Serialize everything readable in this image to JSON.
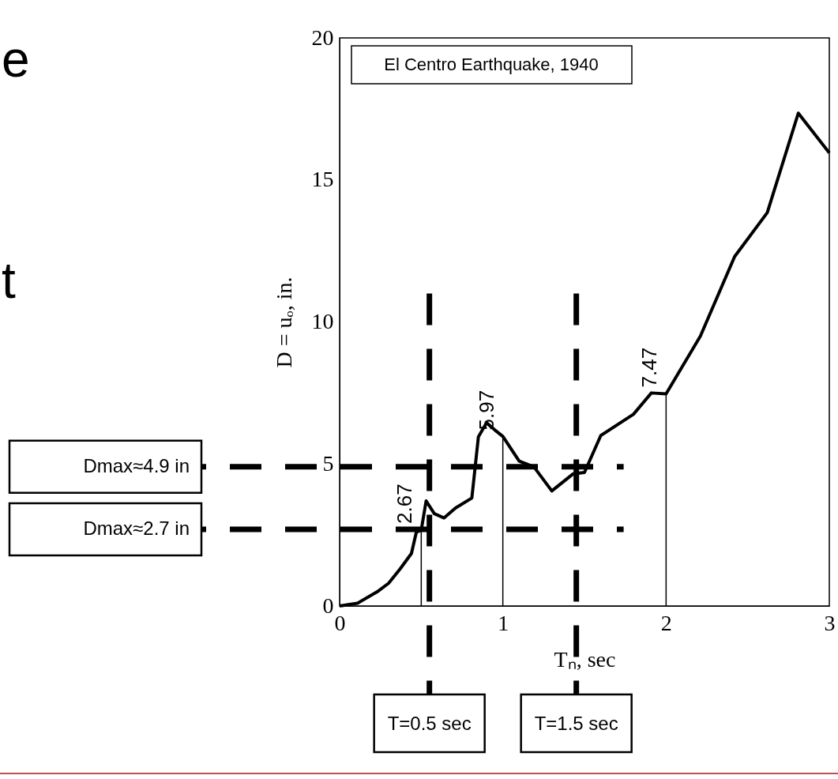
{
  "chart_data": {
    "type": "line",
    "xlabel": "Tₙ, sec",
    "ylabel": "D = uₒ, in.",
    "xlim": [
      0,
      3
    ],
    "xticks": [
      0,
      1,
      2,
      3
    ],
    "ylim": [
      0,
      20
    ],
    "yticks": [
      0,
      5,
      10,
      15,
      20
    ],
    "grid": false,
    "marker": "none",
    "line_style": "solid",
    "x": [
      0,
      0.11,
      0.23,
      0.3,
      0.37,
      0.44,
      0.47,
      0.5,
      0.53,
      0.58,
      0.64,
      0.71,
      0.81,
      0.85,
      0.9,
      0.95,
      1,
      1.1,
      1.19,
      1.3,
      1.43,
      1.5,
      1.6,
      1.8,
      1.91,
      2,
      2.21,
      2.42,
      2.62,
      2.81,
      3
    ],
    "series": [
      {
        "color": "#000000",
        "values": [
          0,
          0.1,
          0.5,
          0.8,
          1.3,
          1.85,
          2.6,
          2.67,
          3.7,
          3.25,
          3.1,
          3.45,
          3.8,
          5.95,
          6.45,
          6.2,
          5.97,
          5.1,
          4.9,
          4.05,
          4.65,
          4.7,
          6.0,
          6.75,
          7.5,
          7.47,
          9.5,
          12.3,
          13.85,
          17.35,
          15.95
        ]
      }
    ],
    "ref_lines": [
      {
        "axis": "y",
        "value": 4.9,
        "label": "Dmax≈4.9 in",
        "color": "#000000",
        "line_style": "dashed"
      },
      {
        "axis": "y",
        "value": 2.7,
        "label": "Dmax≈2.7 in",
        "color": "#000000",
        "line_style": "dashed"
      },
      {
        "axis": "x",
        "value": 0.55,
        "label": "T=0.5 sec",
        "color": "#000000",
        "line_style": "dashed"
      },
      {
        "axis": "x",
        "value": 1.45,
        "label": "T=1.5 sec",
        "color": "#000000",
        "line_style": "dashed"
      }
    ],
    "annotations": [
      "El Centro Earthquake, 1940",
      {
        "text": "2.67",
        "x": 0.5,
        "y": 2.67
      },
      {
        "text": "5.97",
        "x": 1,
        "y": 5.97
      },
      {
        "text": "7.47",
        "x": 2,
        "y": 7.47
      },
      "e",
      "t"
    ]
  }
}
